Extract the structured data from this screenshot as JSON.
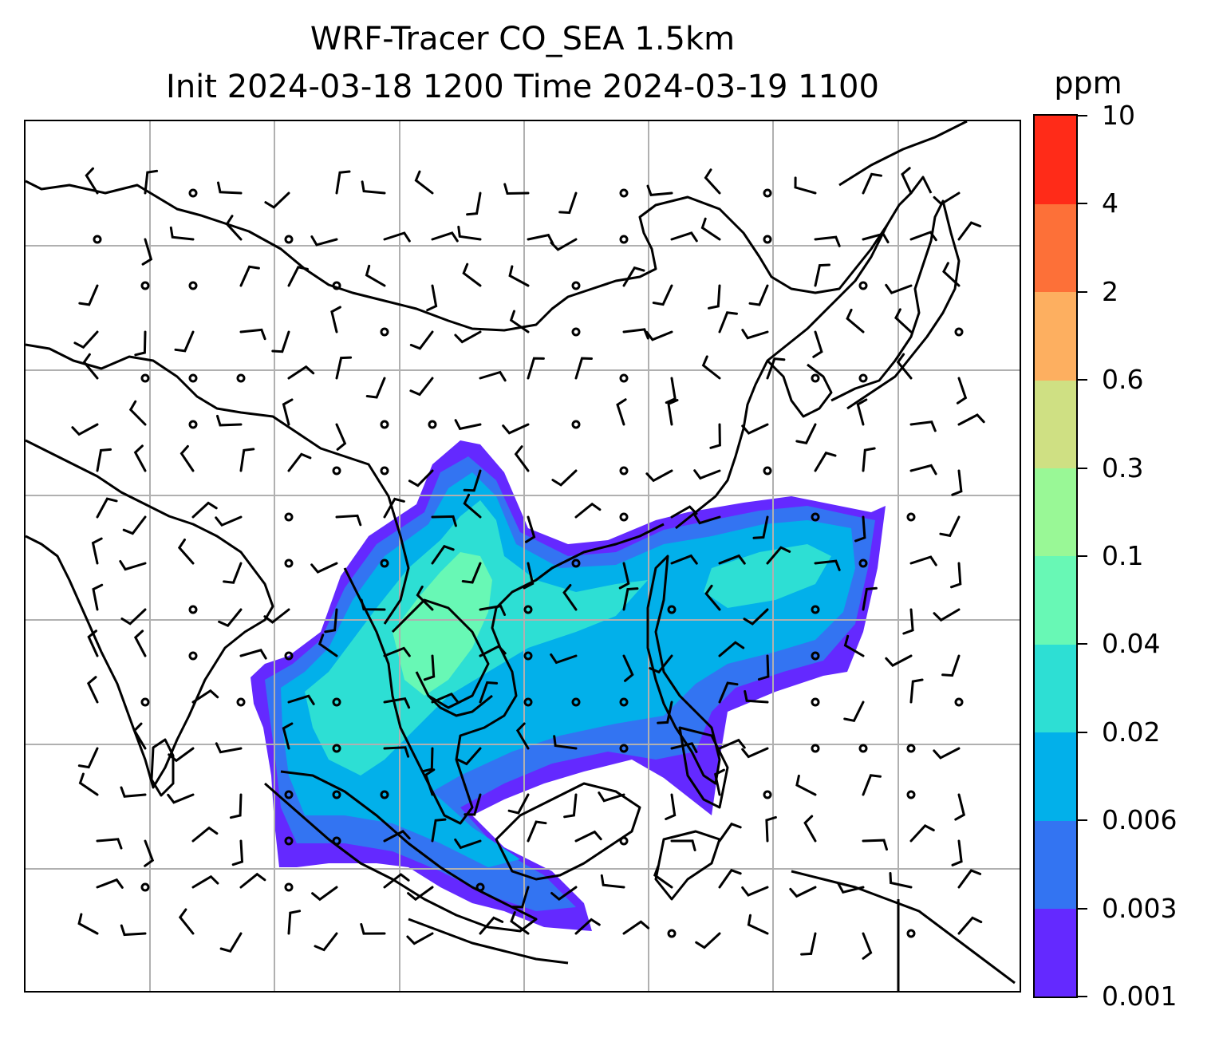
{
  "title": {
    "line1": "WRF-Tracer CO_SEA 1.5km",
    "line2": "Init 2024-03-18 1200 Time 2024-03-19 1100"
  },
  "colorbar": {
    "unit": "ppm",
    "levels": [
      "0.001",
      "0.003",
      "0.006",
      "0.02",
      "0.04",
      "0.1",
      "0.3",
      "0.6",
      "2",
      "4",
      "10"
    ],
    "colors": [
      "#6429ff",
      "#3374f2",
      "#02b0ea",
      "#2ddfd4",
      "#68f8b5",
      "#99f896",
      "#cfe083",
      "#fdaf60",
      "#fd7038",
      "#ff2b18"
    ]
  },
  "map": {
    "field": "CO tracer concentration",
    "overlays": [
      "wind barbs",
      "coastlines",
      "lat/lon gridlines"
    ]
  }
}
